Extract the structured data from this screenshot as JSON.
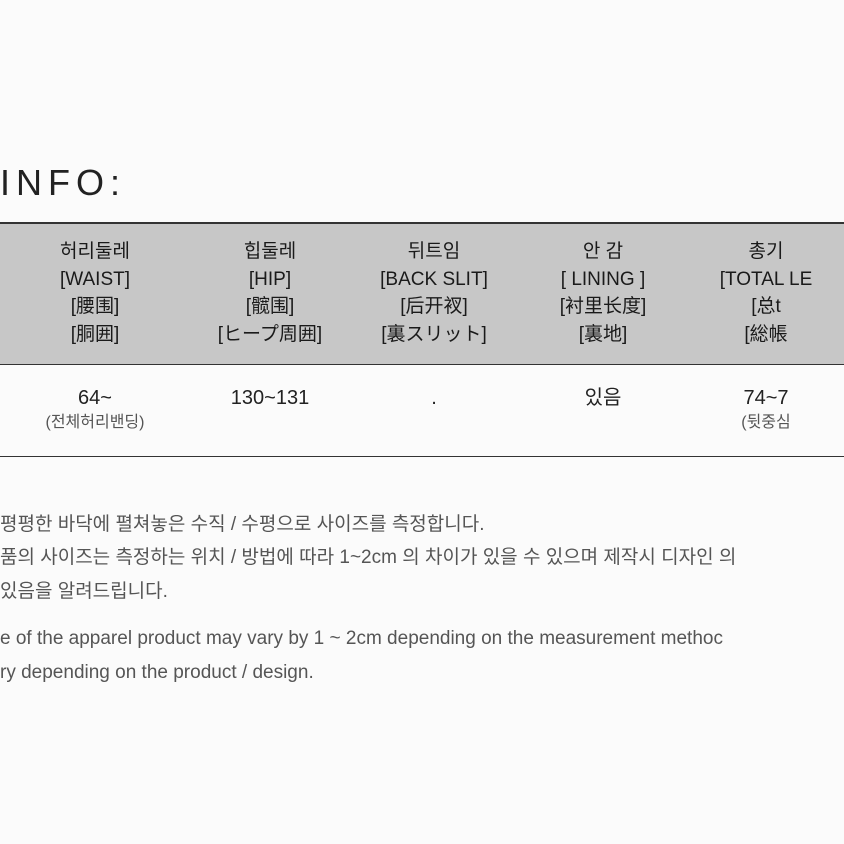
{
  "title": "INFO:",
  "table": {
    "type": "table",
    "header_bg": "#c7c7c7",
    "border_color": "#333333",
    "columns": [
      {
        "lines": [
          "허리둘레",
          "[WAIST]",
          "[腰围]",
          "[胴囲]"
        ]
      },
      {
        "lines": [
          "힙둘레",
          "[HIP]",
          "[髋围]",
          "[ヒープ周囲]"
        ]
      },
      {
        "lines": [
          "뒤트임",
          "[BACK SLIT]",
          "[后开衩]",
          "[裏スリット]"
        ]
      },
      {
        "lines": [
          "안 감",
          "[ LINING ]",
          "[衬里长度]",
          "[裏地]"
        ]
      },
      {
        "lines": [
          "총기",
          "[TOTAL LE",
          "[总t",
          "[総帳"
        ]
      }
    ],
    "row": [
      {
        "main": "64~",
        "sub": "(전체허리밴딩)"
      },
      {
        "main": "130~131",
        "sub": ""
      },
      {
        "main": ".",
        "sub": ""
      },
      {
        "main": "있음",
        "sub": ""
      },
      {
        "main": "74~7",
        "sub": "(뒷중심"
      }
    ]
  },
  "notes": {
    "line1": "평평한 바닥에 펼쳐놓은 수직 / 수평으로 사이즈를 측정합니다.",
    "line2": "품의 사이즈는 측정하는 위치 / 방법에 따라 1~2cm 의 차이가 있을 수 있으며  제작시 디자인 의",
    "line3": "있음을 알려드립니다.",
    "line4": "e of the apparel product may vary by 1 ~ 2cm  depending  on the measurement methoc",
    "line5": "ry depending  on the product / design."
  }
}
